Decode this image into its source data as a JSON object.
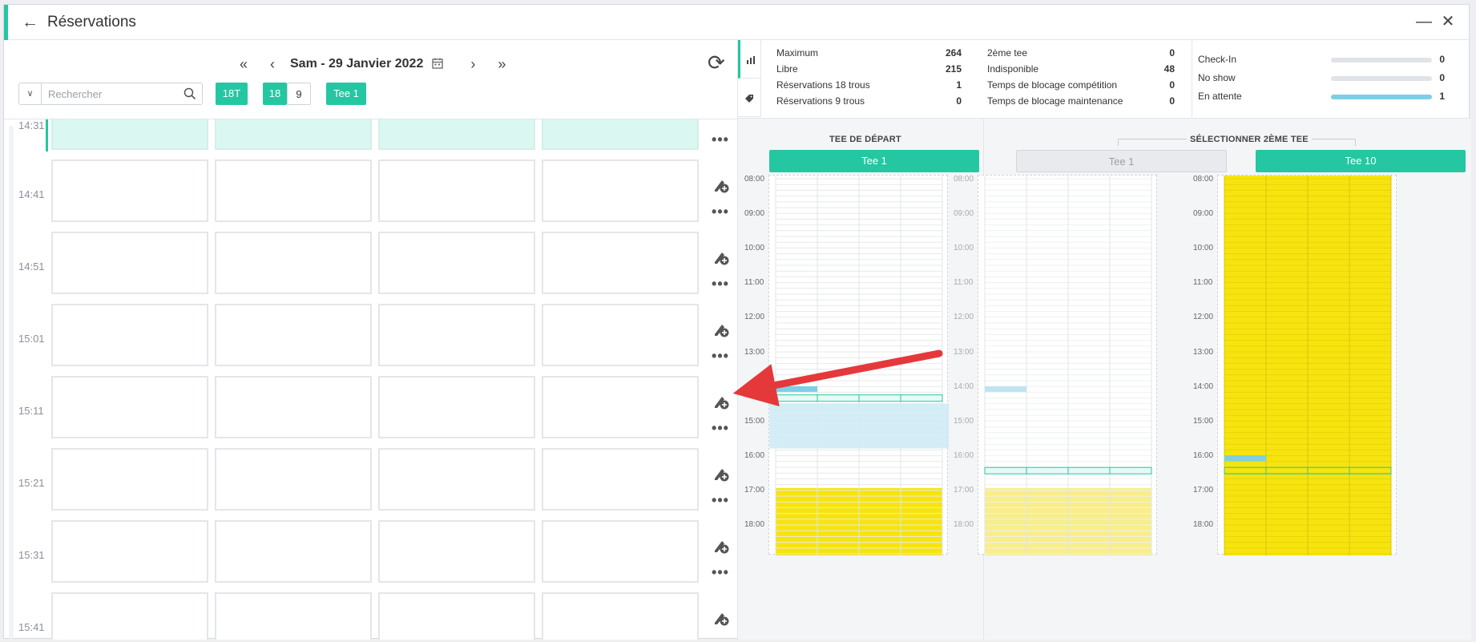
{
  "window": {
    "title": "Réservations"
  },
  "toolbar": {
    "date": "Sam - 29 Janvier 2022",
    "search_placeholder": "Rechercher",
    "chip_18t": "18T",
    "chip_18": "18",
    "chip_9": "9",
    "chip_tee": "Tee 1"
  },
  "rows": [
    {
      "time": "14:31"
    },
    {
      "time": "14:41"
    },
    {
      "time": "14:51"
    },
    {
      "time": "15:01"
    },
    {
      "time": "15:11"
    },
    {
      "time": "15:21"
    },
    {
      "time": "15:31"
    },
    {
      "time": "15:41"
    }
  ],
  "stats": {
    "col1": [
      {
        "label": "Maximum",
        "value": "264"
      },
      {
        "label": "Libre",
        "value": "215"
      },
      {
        "label": "Réservations 18 trous",
        "value": "1"
      },
      {
        "label": "Réservations 9 trous",
        "value": "0"
      }
    ],
    "col2": [
      {
        "label": "2ème tee",
        "value": "0"
      },
      {
        "label": "Indisponible",
        "value": "48"
      },
      {
        "label": "Temps de blocage compétition",
        "value": "0"
      },
      {
        "label": "Temps de blocage maintenance",
        "value": "0"
      }
    ],
    "col3": [
      {
        "label": "Check-In",
        "value": "0",
        "fill": 0
      },
      {
        "label": "No show",
        "value": "0",
        "fill": 0
      },
      {
        "label": "En attente",
        "value": "1",
        "fill": 1
      }
    ]
  },
  "schedule": {
    "start_heading": "TEE DE DÉPART",
    "second_heading": "SÉLECTIONNER 2ÈME TEE",
    "start_tee": "Tee 1",
    "second_tee_a": "Tee 1",
    "second_tee_b": "Tee 10",
    "hours": [
      "08:00",
      "09:00",
      "10:00",
      "11:00",
      "12:00",
      "13:00",
      "14:00",
      "15:00",
      "16:00",
      "17:00",
      "18:00"
    ]
  },
  "colors": {
    "accent": "#25c7a2",
    "blocked": "#f7e40f",
    "reserved": "#7ccfe5"
  }
}
